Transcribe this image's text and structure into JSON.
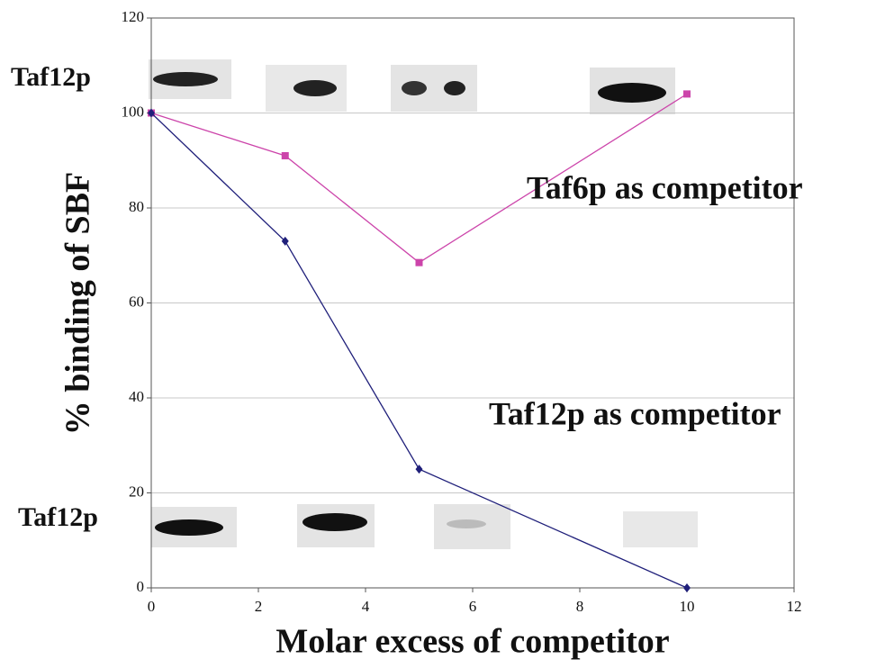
{
  "chart_data": {
    "type": "line",
    "x_label": "Molar excess of competitor",
    "y_label": "% binding of SBF",
    "x": [
      0,
      2.5,
      5,
      10
    ],
    "series": [
      {
        "name": "Taf6p as competitor",
        "color": "#cc44aa",
        "marker": "square",
        "values": [
          100,
          91,
          68.5,
          104
        ]
      },
      {
        "name": "Taf12p as competitor",
        "color": "#1f1f7a",
        "marker": "diamond",
        "values": [
          100,
          73,
          25,
          0
        ]
      }
    ],
    "gel_labels": [
      "Taf12p",
      "Taf12p"
    ],
    "xlim": [
      0,
      12
    ],
    "xticks": [
      0,
      2,
      4,
      6,
      8,
      10,
      12
    ],
    "ylim": [
      0,
      120
    ],
    "yticks": [
      0,
      20,
      40,
      60,
      80,
      100,
      120
    ],
    "grid": true
  }
}
